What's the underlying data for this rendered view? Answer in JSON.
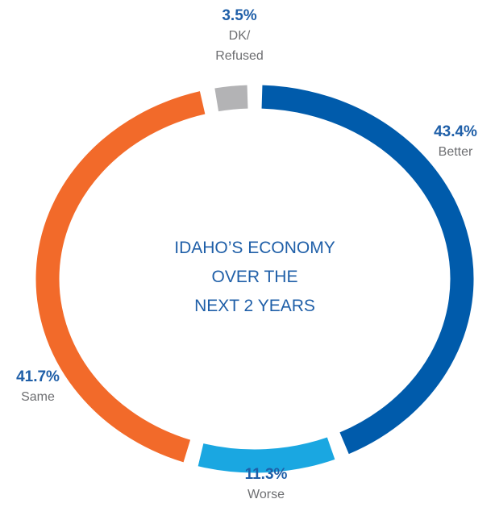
{
  "chart_data": {
    "type": "donut",
    "title": "IDAHO’S ECONOMY\nOVER THE\nNEXT 2 YEARS",
    "categories": [
      "Better",
      "Worse",
      "Same",
      "DK/\nRefused"
    ],
    "values": [
      43.4,
      11.3,
      41.7,
      3.5
    ],
    "value_labels": [
      "43.4%",
      "11.3%",
      "41.7%",
      "3.5%"
    ],
    "colors": [
      "#005bab",
      "#1aa7e1",
      "#f26a2a",
      "#b3b3b5"
    ]
  }
}
